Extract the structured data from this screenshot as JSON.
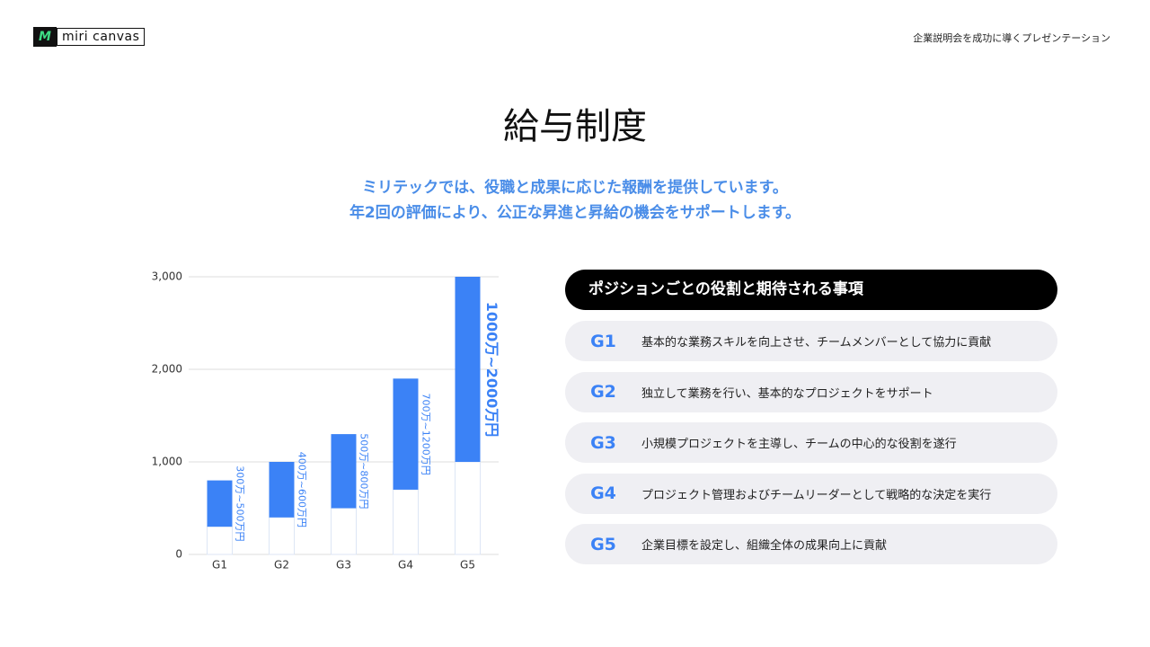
{
  "header": {
    "logo": "miri canvas",
    "tagline": "企業説明会を成功に導くプレゼンテーション"
  },
  "title": "給与制度",
  "subtitle": [
    "ミリテックでは、役職と成果に応じた報酬を提供しています。",
    "年2回の評価により、公正な昇進と昇給の機会をサポートします。"
  ],
  "chart_data": {
    "type": "bar",
    "stacked": true,
    "categories": [
      "G1",
      "G2",
      "G3",
      "G4",
      "G5"
    ],
    "series": [
      {
        "color": "#ffffff",
        "values": [
          300,
          400,
          500,
          700,
          1000
        ]
      },
      {
        "color": "#3b82f6",
        "values": [
          500,
          600,
          800,
          1200,
          2000
        ]
      }
    ],
    "annotations": [
      "300万~500万円",
      "400万~600万円",
      "500万~800万円",
      "700万~1200万円",
      "1000万~2000万円"
    ],
    "ylim": [
      0,
      3000
    ],
    "yticks": [
      0,
      {
        "value": 1000,
        "label": "1,000"
      },
      {
        "value": 2000,
        "label": "2,000"
      },
      {
        "value": 3000,
        "label": "3,000"
      }
    ],
    "grid": true
  },
  "roles": {
    "heading": "ポジションごとの役割と期待される事項",
    "rows": [
      [
        "G1",
        "基本的な業務スキルを向上させ、チームメンバーとして協力に貢献"
      ],
      [
        "G2",
        "独立して業務を行い、基本的なプロジェクトをサポート"
      ],
      [
        "G3",
        "小規模プロジェクトを主導し、チームの中心的な役割を遂行"
      ],
      [
        "G4",
        "プロジェクト管理およびチームリーダーとして戦略的な決定を実行"
      ],
      [
        "G5",
        "企業目標を設定し、組織全体の成果向上に貢献"
      ]
    ]
  }
}
